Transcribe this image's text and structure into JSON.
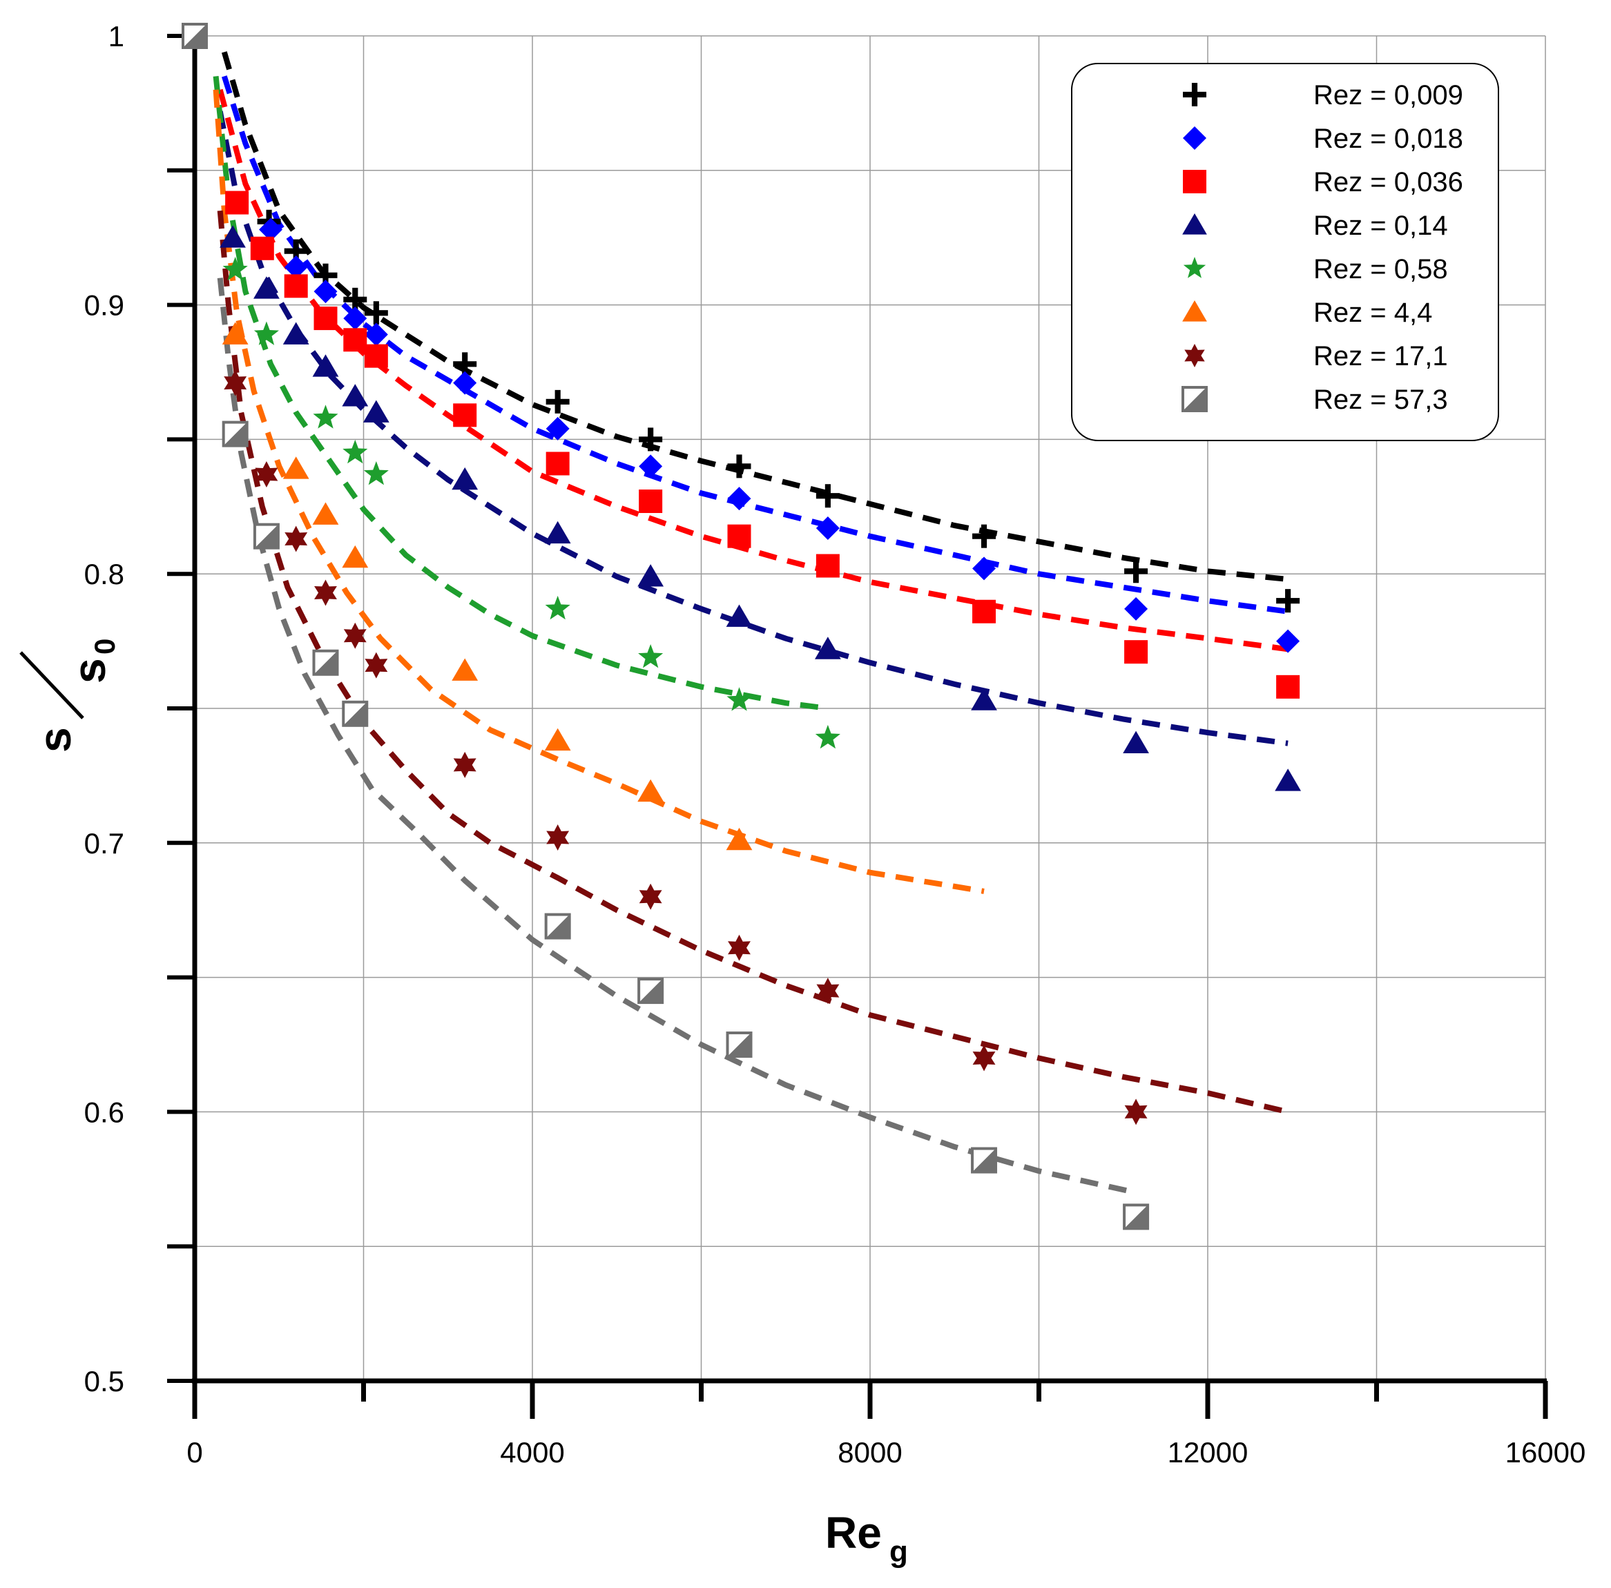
{
  "chart_data": {
    "type": "scatter",
    "xlim": [
      0,
      16000
    ],
    "ylim": [
      0.5,
      1.0
    ],
    "xticks": [
      "0",
      "4000",
      "8000",
      "12000",
      "16000"
    ],
    "yticks": [
      "0.5",
      "0.6",
      "0.7",
      "0.8",
      "0.9",
      "1"
    ],
    "xlabel": {
      "main": "Re",
      "sub": "g"
    },
    "ylabel": {
      "num": "s",
      "den": "s",
      "den_sub": "0"
    },
    "grid": true,
    "legend_position": "top-right",
    "series": [
      {
        "name": "Rez = 0,009",
        "marker": "plus",
        "color": "#000000",
        "x": [
          0,
          880,
          1200,
          1550,
          1900,
          2150,
          3200,
          4300,
          5400,
          6450,
          7500,
          9350,
          11150,
          12950
        ],
        "y": [
          1.0,
          0.931,
          0.92,
          0.911,
          0.902,
          0.897,
          0.878,
          0.864,
          0.85,
          0.84,
          0.829,
          0.814,
          0.801,
          0.79
        ],
        "fit_x": [
          350,
          600,
          1000,
          1500,
          2000,
          2500,
          3000,
          4000,
          5000,
          6000,
          7000,
          8000,
          9000,
          10000,
          11000,
          12000,
          12950
        ],
        "fit_y": [
          0.994,
          0.967,
          0.935,
          0.913,
          0.899,
          0.889,
          0.879,
          0.863,
          0.851,
          0.842,
          0.834,
          0.826,
          0.818,
          0.812,
          0.806,
          0.801,
          0.798
        ]
      },
      {
        "name": "Rez = 0,018",
        "marker": "diamond",
        "color": "#0000FF",
        "x": [
          0,
          900,
          1200,
          1550,
          1900,
          2150,
          3200,
          4300,
          5400,
          6450,
          7500,
          9350,
          11150,
          12950
        ],
        "y": [
          1.0,
          0.928,
          0.914,
          0.905,
          0.895,
          0.889,
          0.871,
          0.854,
          0.84,
          0.828,
          0.817,
          0.802,
          0.787,
          0.775
        ],
        "fit_x": [
          350,
          600,
          1000,
          1500,
          2000,
          2500,
          3000,
          4000,
          5000,
          6000,
          7000,
          8000,
          9000,
          10000,
          11000,
          12000,
          12950
        ],
        "fit_y": [
          0.985,
          0.96,
          0.93,
          0.908,
          0.893,
          0.881,
          0.872,
          0.854,
          0.841,
          0.83,
          0.822,
          0.814,
          0.807,
          0.8,
          0.795,
          0.79,
          0.786
        ]
      },
      {
        "name": "Rez = 0,036",
        "marker": "square",
        "color": "#FF0000",
        "x": [
          0,
          500,
          800,
          1200,
          1550,
          1900,
          2150,
          3200,
          4300,
          5400,
          6450,
          7500,
          9350,
          11150,
          12950
        ],
        "y": [
          1.0,
          0.938,
          0.921,
          0.907,
          0.895,
          0.887,
          0.881,
          0.859,
          0.841,
          0.827,
          0.814,
          0.803,
          0.786,
          0.771,
          0.758
        ],
        "fit_x": [
          300,
          600,
          1000,
          1500,
          2000,
          2500,
          3000,
          4000,
          5000,
          6000,
          7000,
          8000,
          9000,
          10000,
          11000,
          12000,
          12950
        ],
        "fit_y": [
          0.98,
          0.945,
          0.918,
          0.897,
          0.882,
          0.87,
          0.859,
          0.838,
          0.825,
          0.814,
          0.805,
          0.797,
          0.791,
          0.785,
          0.78,
          0.776,
          0.772
        ]
      },
      {
        "name": "Rez = 0,14",
        "marker": "triangle",
        "color": "#0A0A7A",
        "x": [
          0,
          450,
          850,
          1200,
          1550,
          1900,
          2150,
          3200,
          4300,
          5400,
          6450,
          7500,
          9350,
          11150,
          12950
        ],
        "y": [
          1.0,
          0.925,
          0.906,
          0.889,
          0.877,
          0.866,
          0.86,
          0.835,
          0.815,
          0.799,
          0.784,
          0.772,
          0.753,
          0.737,
          0.723
        ],
        "fit_x": [
          300,
          500,
          800,
          1200,
          1600,
          2000,
          2500,
          3000,
          4000,
          5000,
          6000,
          7000,
          8000,
          9000,
          10000,
          11000,
          12000,
          12950
        ],
        "fit_y": [
          0.972,
          0.94,
          0.913,
          0.891,
          0.874,
          0.861,
          0.847,
          0.835,
          0.815,
          0.799,
          0.787,
          0.776,
          0.767,
          0.759,
          0.752,
          0.746,
          0.741,
          0.737
        ]
      },
      {
        "name": "Rez = 0,58",
        "marker": "star5",
        "color": "#1E9E2E",
        "x": [
          0,
          480,
          850,
          1550,
          1900,
          2150,
          4300,
          5400,
          6450,
          7500
        ],
        "y": [
          1.0,
          0.913,
          0.889,
          0.858,
          0.845,
          0.837,
          0.787,
          0.769,
          0.753,
          0.739
        ],
        "fit_x": [
          250,
          400,
          600,
          900,
          1200,
          1600,
          2000,
          2500,
          3000,
          3500,
          4000,
          5000,
          6000,
          7000,
          7500
        ],
        "fit_y": [
          0.985,
          0.94,
          0.905,
          0.878,
          0.86,
          0.842,
          0.824,
          0.807,
          0.795,
          0.785,
          0.777,
          0.766,
          0.758,
          0.752,
          0.75
        ]
      },
      {
        "name": "Rez = 4,4",
        "marker": "triangle",
        "color": "#FF6A00",
        "x": [
          0,
          480,
          1200,
          1550,
          1900,
          3200,
          4300,
          5400,
          6450
        ],
        "y": [
          1.0,
          0.889,
          0.839,
          0.822,
          0.806,
          0.764,
          0.738,
          0.719,
          0.701
        ],
        "fit_x": [
          250,
          350,
          500,
          700,
          1000,
          1400,
          1800,
          2200,
          2800,
          3500,
          4300,
          5000,
          6000,
          7000,
          8000,
          9350
        ],
        "fit_y": [
          0.98,
          0.935,
          0.897,
          0.868,
          0.84,
          0.814,
          0.793,
          0.776,
          0.757,
          0.742,
          0.731,
          0.722,
          0.708,
          0.697,
          0.689,
          0.682
        ]
      },
      {
        "name": "Rez = 17,1",
        "marker": "star6",
        "color": "#7A0A0A",
        "x": [
          0,
          480,
          850,
          1200,
          1550,
          1900,
          2150,
          3200,
          4300,
          5400,
          6450,
          7500,
          9350,
          11150
        ],
        "y": [
          1.0,
          0.871,
          0.837,
          0.813,
          0.793,
          0.777,
          0.766,
          0.729,
          0.702,
          0.68,
          0.661,
          0.645,
          0.62,
          0.6
        ],
        "fit_x": [
          300,
          400,
          550,
          800,
          1100,
          1500,
          2000,
          2500,
          3000,
          3500,
          4300,
          5000,
          6000,
          7000,
          8000,
          9000,
          10000,
          11000,
          12000,
          12950
        ],
        "fit_y": [
          0.935,
          0.9,
          0.86,
          0.825,
          0.795,
          0.77,
          0.745,
          0.727,
          0.711,
          0.7,
          0.687,
          0.675,
          0.66,
          0.647,
          0.636,
          0.628,
          0.62,
          0.613,
          0.607,
          0.6
        ]
      },
      {
        "name": "Rez = 57,3",
        "marker": "halfsquare",
        "color": "#707070",
        "x": [
          0,
          480,
          850,
          1550,
          1900,
          4300,
          5400,
          6450,
          9350,
          11150
        ],
        "y": [
          1.0,
          0.852,
          0.814,
          0.767,
          0.748,
          0.669,
          0.645,
          0.625,
          0.582,
          0.561
        ],
        "fit_x": [
          300,
          400,
          550,
          750,
          1000,
          1300,
          1700,
          2100,
          2600,
          3200,
          4000,
          5000,
          6000,
          7000,
          8000,
          9000,
          10000,
          11150
        ],
        "fit_y": [
          0.91,
          0.88,
          0.845,
          0.815,
          0.787,
          0.763,
          0.74,
          0.72,
          0.705,
          0.686,
          0.664,
          0.643,
          0.625,
          0.61,
          0.598,
          0.587,
          0.578,
          0.57
        ]
      }
    ]
  }
}
